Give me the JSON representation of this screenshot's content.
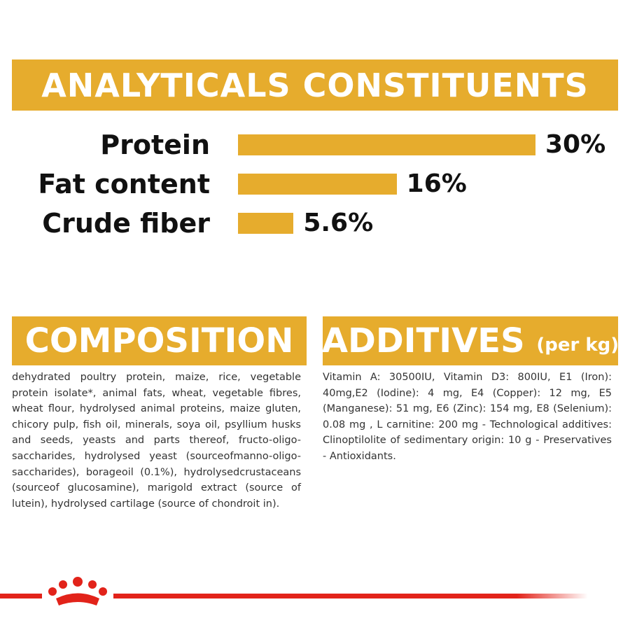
{
  "title": "ANALYTICALS CONSTITUENTS",
  "chart_data": {
    "type": "bar",
    "color": "#e6ac2d",
    "categories": [
      "Protein",
      "Fat content",
      "Crude fiber"
    ],
    "values": [
      30,
      16,
      5.6
    ],
    "value_labels": [
      "30%",
      "16%",
      "5.6%"
    ]
  },
  "composition": {
    "title": "COMPOSITION",
    "text": "dehydrated poultry protein, maize, rice, vegetable protein isolate*, animal fats, wheat, vegetable fibres, wheat flour, hydrolysed animal proteins, maize gluten, chicory pulp, fish oil, minerals, soya oil, psyllium husks and seeds, yeasts and parts thereof, fructo-oligo-saccharides, hydrolysed yeast (sourceofmanno-oligo-saccharides), borageoil (0.1%), hydrolysedcrustaceans (sourceof glucosamine), marigold extract (source of lutein), hydrolysed cartilage (source of chondroit in)."
  },
  "additives": {
    "title": "ADDITIVES",
    "unit": "(per kg)",
    "text": "Vitamin A: 30500IU, Vitamin D3: 800IU, E1 (Iron): 40mg,E2 (Iodine): 4 mg, E4 (Copper): 12 mg, E5 (Manganese): 51 mg, E6 (Zinc): 154 mg, E8 (Selenium): 0.08 mg , L carnitine: 200 mg - Technological additives: Clinoptilolite of sedimentary origin: 10 g - Preservatives - Antioxidants."
  }
}
